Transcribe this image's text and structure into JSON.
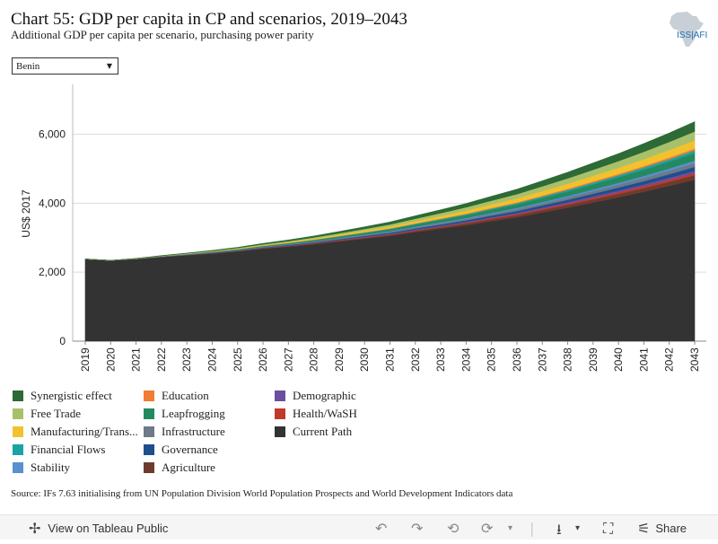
{
  "header": {
    "title": "Chart 55: GDP per capita in CP and scenarios, 2019–2043",
    "subtitle": "Additional GDP per capita per scenario, purchasing power parity",
    "logo_text": "ISS|AFI"
  },
  "filter": {
    "selected": "Benin"
  },
  "source": "Source: IFs 7.63 initialising from UN Population Division World Population Prospects and World Development Indicators data",
  "footer": {
    "view_label": "View on Tableau Public",
    "share_label": "Share"
  },
  "chart_data": {
    "type": "area",
    "stacked": true,
    "ylabel": "US$ 2017",
    "xlabel": "",
    "ylim": [
      0,
      7600
    ],
    "yticks": [
      0,
      2000,
      4000,
      6000
    ],
    "ytick_labels": [
      "0",
      "2,000",
      "4,000",
      "6,000"
    ],
    "grid": true,
    "x": [
      "2019",
      "2020",
      "2021",
      "2022",
      "2023",
      "2024",
      "2025",
      "2026",
      "2027",
      "2028",
      "2029",
      "2030",
      "2031",
      "2032",
      "2033",
      "2034",
      "2035",
      "2036",
      "2037",
      "2038",
      "2039",
      "2040",
      "2041",
      "2042",
      "2043"
    ],
    "legend_order": [
      "Synergistic effect",
      "Education",
      "Demographic",
      "Free Trade",
      "Leapfrogging",
      "Health/WaSH",
      "Manufacturing/Trans...",
      "Infrastructure",
      "Current Path",
      "Financial Flows",
      "Governance",
      "Stability",
      "Agriculture"
    ],
    "series": [
      {
        "name": "Current Path",
        "color": "#333333",
        "values": [
          2380,
          2340,
          2380,
          2440,
          2490,
          2540,
          2600,
          2680,
          2740,
          2810,
          2890,
          2970,
          3050,
          3160,
          3260,
          3360,
          3480,
          3590,
          3730,
          3870,
          4020,
          4170,
          4330,
          4500,
          4680
        ]
      },
      {
        "name": "Agriculture",
        "color": "#6e3b2e",
        "values": [
          0,
          0,
          2,
          4,
          6,
          9,
          12,
          15,
          18,
          22,
          26,
          30,
          35,
          40,
          46,
          53,
          60,
          67,
          75,
          83,
          92,
          101,
          110,
          120,
          130
        ]
      },
      {
        "name": "Health/WaSH",
        "color": "#c0392b",
        "values": [
          0,
          0,
          1,
          2,
          3,
          4,
          5,
          6,
          7,
          9,
          11,
          13,
          15,
          17,
          20,
          23,
          26,
          30,
          34,
          38,
          43,
          48,
          53,
          58,
          64
        ]
      },
      {
        "name": "Demographic",
        "color": "#6b4fa0",
        "values": [
          0,
          0,
          1,
          2,
          3,
          4,
          5,
          6,
          8,
          10,
          12,
          14,
          16,
          18,
          21,
          24,
          27,
          31,
          35,
          39,
          44,
          49,
          54,
          60,
          66
        ]
      },
      {
        "name": "Governance",
        "color": "#1f4e8c",
        "values": [
          0,
          0,
          2,
          4,
          6,
          8,
          10,
          12,
          15,
          18,
          21,
          25,
          29,
          34,
          39,
          44,
          50,
          56,
          63,
          70,
          78,
          86,
          95,
          104,
          114
        ]
      },
      {
        "name": "Infrastructure",
        "color": "#6c7a89",
        "values": [
          0,
          0,
          2,
          3,
          5,
          7,
          9,
          11,
          14,
          17,
          20,
          24,
          28,
          33,
          38,
          43,
          49,
          55,
          62,
          69,
          77,
          85,
          94,
          103,
          113
        ]
      },
      {
        "name": "Stability",
        "color": "#5b8fcf",
        "values": [
          0,
          0,
          1,
          2,
          3,
          4,
          5,
          6,
          8,
          10,
          12,
          14,
          16,
          19,
          22,
          25,
          29,
          33,
          37,
          42,
          47,
          52,
          58,
          64,
          70
        ]
      },
      {
        "name": "Leapfrogging",
        "color": "#238a5f",
        "values": [
          0,
          0,
          3,
          6,
          9,
          13,
          17,
          22,
          27,
          33,
          39,
          46,
          54,
          62,
          71,
          81,
          92,
          104,
          117,
          131,
          146,
          162,
          179,
          197,
          216
        ]
      },
      {
        "name": "Financial Flows",
        "color": "#1aa3a3",
        "values": [
          0,
          0,
          1,
          2,
          3,
          4,
          5,
          7,
          9,
          11,
          13,
          15,
          18,
          21,
          24,
          28,
          32,
          36,
          41,
          46,
          51,
          57,
          63,
          70,
          77
        ]
      },
      {
        "name": "Education",
        "color": "#f07c35",
        "values": [
          0,
          0,
          1,
          1,
          2,
          3,
          4,
          5,
          6,
          7,
          8,
          10,
          12,
          14,
          16,
          19,
          22,
          25,
          28,
          32,
          36,
          40,
          45,
          50,
          55
        ]
      },
      {
        "name": "Manufacturing/Trans...",
        "color": "#f2c12e",
        "values": [
          0,
          0,
          2,
          4,
          7,
          10,
          14,
          18,
          23,
          29,
          36,
          44,
          53,
          63,
          74,
          86,
          99,
          113,
          128,
          144,
          161,
          179,
          198,
          218,
          239
        ]
      },
      {
        "name": "Free Trade",
        "color": "#a9c06a",
        "values": [
          0,
          0,
          2,
          4,
          7,
          10,
          14,
          19,
          25,
          32,
          40,
          49,
          59,
          70,
          82,
          95,
          109,
          124,
          140,
          157,
          175,
          194,
          214,
          235,
          257
        ]
      },
      {
        "name": "Synergistic effect",
        "color": "#2d6a35",
        "values": [
          0,
          0,
          3,
          6,
          10,
          14,
          19,
          25,
          32,
          40,
          49,
          59,
          70,
          82,
          95,
          109,
          124,
          140,
          157,
          175,
          194,
          214,
          235,
          257,
          280
        ]
      }
    ]
  }
}
